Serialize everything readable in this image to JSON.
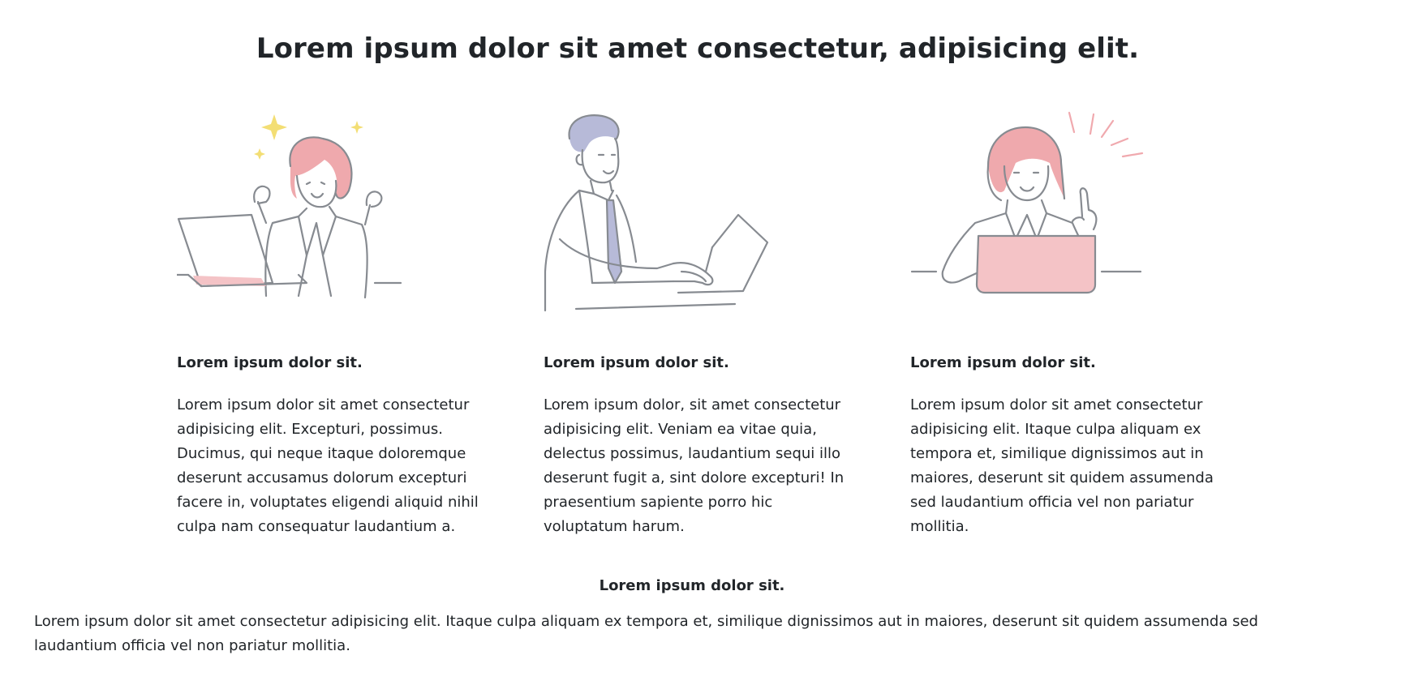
{
  "header": {
    "title": "Lorem ipsum dolor sit amet consectetur, adipisicing elit."
  },
  "features": [
    {
      "title": "Lorem ipsum dolor sit.",
      "text": "Lorem ipsum dolor sit amet consectetur adipisicing elit. Excepturi, possimus. Ducimus, qui neque itaque doloremque deserunt accusamus dolorum excepturi facere in, voluptates eligendi aliquid nihil culpa nam consequatur laudantium a.",
      "illustration_icon": "woman-celebrating-laptop-icon"
    },
    {
      "title": "Lorem ipsum dolor sit.",
      "text": "Lorem ipsum dolor, sit amet consectetur adipisicing elit. Veniam ea vitae quia, delectus possimus, laudantium sequi illo deserunt fugit a, sint dolore excepturi! In praesentium sapiente porro hic voluptatum harum.",
      "illustration_icon": "man-typing-laptop-icon"
    },
    {
      "title": "Lorem ipsum dolor sit.",
      "text": "Lorem ipsum dolor sit amet consectetur adipisicing elit. Itaque culpa aliquam ex tempora et, similique dignissimos aut in maiores, deserunt sit quidem assumenda sed laudantium officia vel non pariatur mollitia.",
      "illustration_icon": "woman-idea-laptop-icon"
    }
  ],
  "bottom": {
    "title": "Lorem ipsum dolor sit.",
    "text": "Lorem ipsum dolor sit amet consectetur adipisicing elit. Itaque culpa aliquam ex tempora et, similique dignissimos aut in maiores, deserunt sit quidem assumenda sed laudantium officia vel non pariatur mollitia."
  },
  "colors": {
    "text": "#212529",
    "line_art": "#878b91",
    "accent_pink": "#f4c3c6",
    "accent_yellow": "#f3de74",
    "accent_lavender": "#b7bad8"
  }
}
